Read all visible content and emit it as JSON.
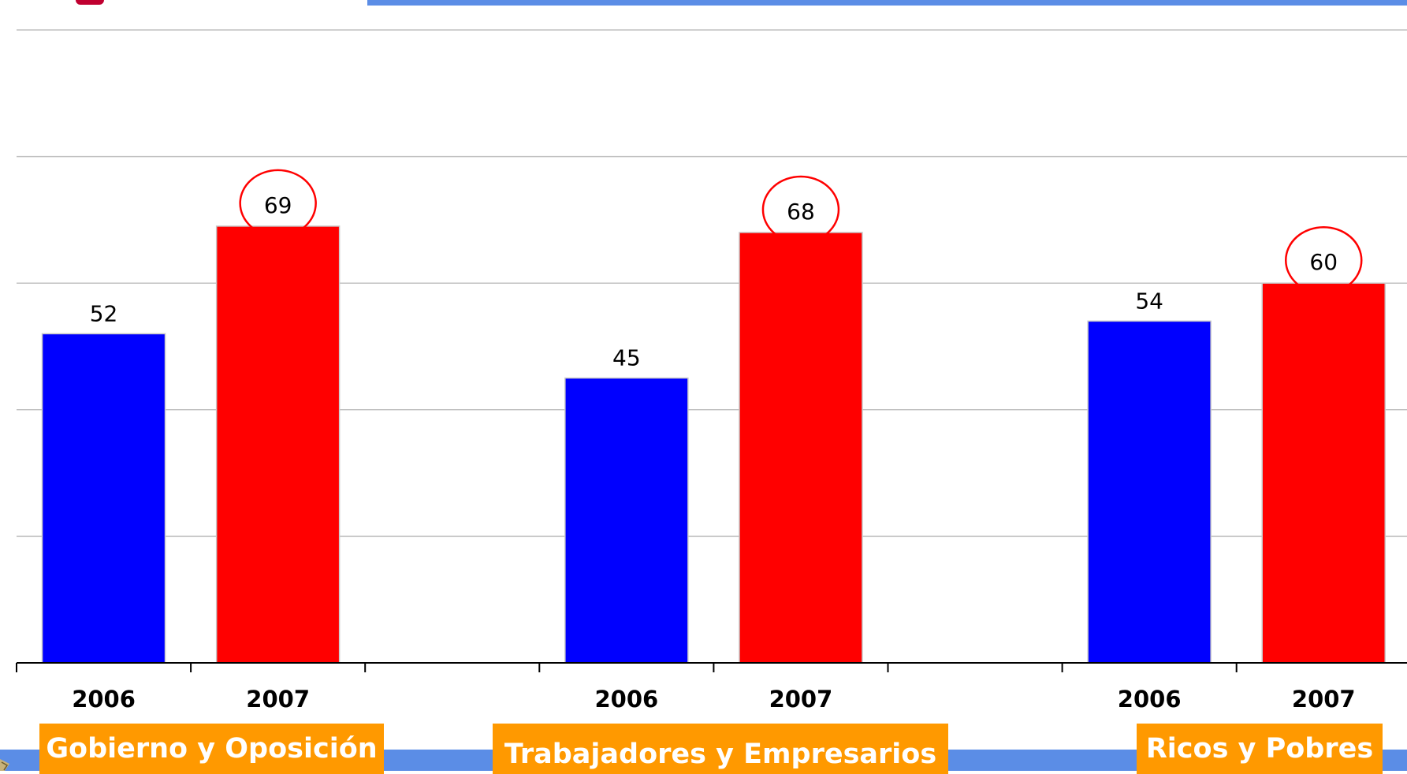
{
  "colors": {
    "top_bar": "#5b8de6",
    "bottom_strip": "#5b8de6",
    "label_bg": "#ff9900",
    "label_text": "#ffffff",
    "highlight_circle": "#ff0000",
    "gridline": "#c0c0c0",
    "axis": "#000000"
  },
  "chart_data": {
    "type": "bar",
    "title": "",
    "xlabel": "",
    "ylabel": "",
    "ylim": [
      0,
      100
    ],
    "grid": true,
    "y_ticks": [
      0,
      20,
      40,
      60,
      80,
      100
    ],
    "groups": [
      {
        "label": "Gobierno y Oposición",
        "bars": [
          {
            "category": "2006",
            "value": 52,
            "color": "#0000ff",
            "highlight": false
          },
          {
            "category": "2007",
            "value": 69,
            "color": "#ff0000",
            "highlight": true
          }
        ]
      },
      {
        "label": "Trabajadores y Empresarios",
        "bars": [
          {
            "category": "2006",
            "value": 45,
            "color": "#0000ff",
            "highlight": false
          },
          {
            "category": "2007",
            "value": 68,
            "color": "#ff0000",
            "highlight": true
          }
        ]
      },
      {
        "label": "Ricos y Pobres",
        "bars": [
          {
            "category": "2006",
            "value": 54,
            "color": "#0000ff",
            "highlight": false
          },
          {
            "category": "2007",
            "value": 60,
            "color": "#ff0000",
            "highlight": true
          }
        ]
      }
    ]
  }
}
